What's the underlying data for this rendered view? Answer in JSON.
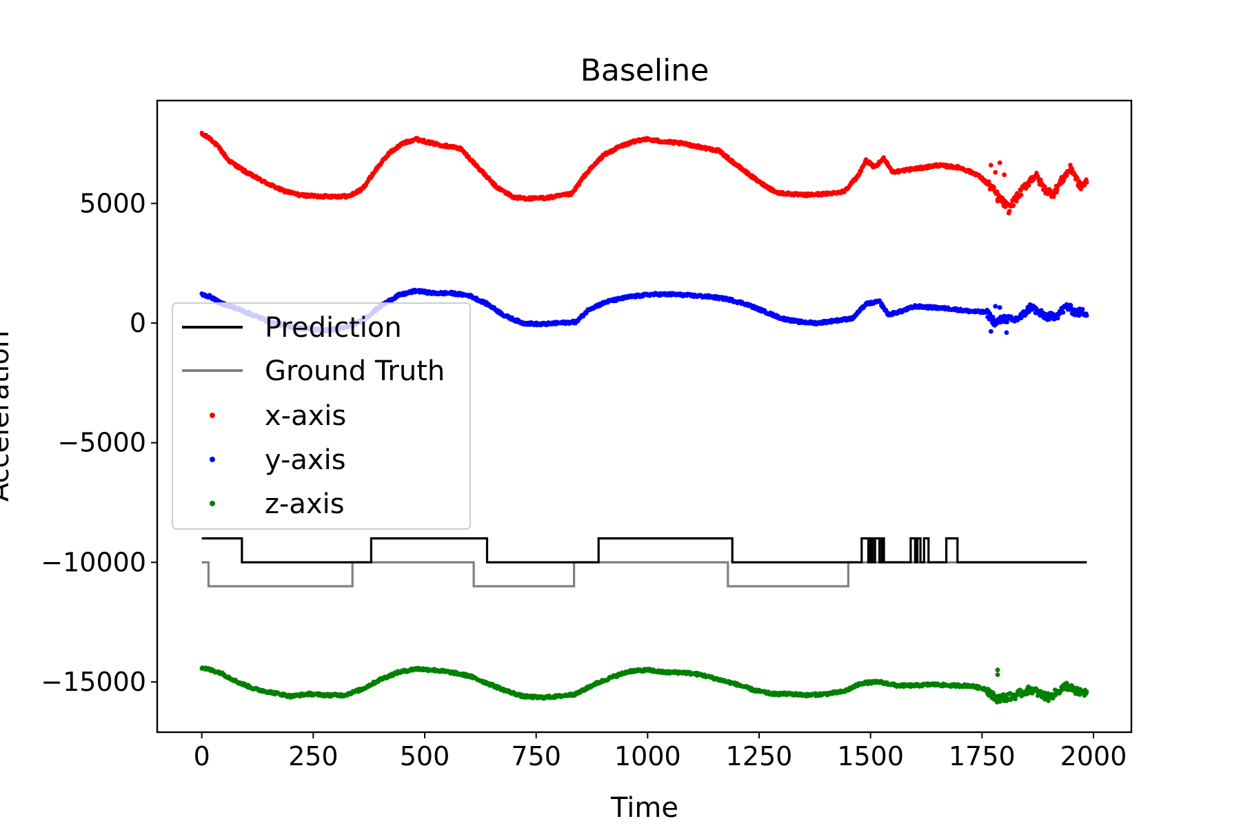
{
  "chart_data": {
    "type": "scatter",
    "title": "Baseline",
    "xlabel": "Time",
    "ylabel": "Acceleration",
    "xlim": [
      -100,
      2085
    ],
    "ylim": [
      -17100,
      9300
    ],
    "xticks": [
      0,
      250,
      500,
      750,
      1000,
      1250,
      1500,
      1750,
      2000
    ],
    "yticks": [
      5000,
      0,
      -5000,
      -10000,
      -15000
    ],
    "ytick_labels": [
      "5000",
      "0",
      "−5000",
      "−10000",
      "−15000"
    ],
    "legend": {
      "position": "center-left",
      "entries": [
        "Prediction",
        "Ground Truth",
        "x-axis",
        "y-axis",
        "z-axis"
      ]
    },
    "scatter_series": [
      {
        "name": "x-axis",
        "color": "#ff0000",
        "x_range": [
          0,
          1985
        ],
        "keypoints": [
          [
            0,
            7900
          ],
          [
            20,
            7700
          ],
          [
            40,
            7300
          ],
          [
            60,
            6800
          ],
          [
            100,
            6300
          ],
          [
            140,
            5900
          ],
          [
            180,
            5550
          ],
          [
            220,
            5350
          ],
          [
            260,
            5300
          ],
          [
            300,
            5300
          ],
          [
            330,
            5300
          ],
          [
            360,
            5600
          ],
          [
            390,
            6400
          ],
          [
            420,
            7100
          ],
          [
            450,
            7500
          ],
          [
            480,
            7700
          ],
          [
            520,
            7500
          ],
          [
            580,
            7300
          ],
          [
            620,
            6500
          ],
          [
            660,
            5700
          ],
          [
            700,
            5250
          ],
          [
            740,
            5200
          ],
          [
            780,
            5250
          ],
          [
            830,
            5400
          ],
          [
            860,
            6200
          ],
          [
            900,
            7000
          ],
          [
            940,
            7400
          ],
          [
            990,
            7700
          ],
          [
            1030,
            7600
          ],
          [
            1080,
            7500
          ],
          [
            1120,
            7350
          ],
          [
            1160,
            7200
          ],
          [
            1200,
            6600
          ],
          [
            1250,
            5900
          ],
          [
            1290,
            5450
          ],
          [
            1350,
            5350
          ],
          [
            1400,
            5400
          ],
          [
            1440,
            5500
          ],
          [
            1470,
            6100
          ],
          [
            1490,
            6800
          ],
          [
            1510,
            6500
          ],
          [
            1530,
            6900
          ],
          [
            1550,
            6300
          ],
          [
            1580,
            6400
          ],
          [
            1620,
            6500
          ],
          [
            1650,
            6600
          ],
          [
            1700,
            6500
          ],
          [
            1740,
            6200
          ],
          [
            1770,
            5700
          ],
          [
            1790,
            5200
          ],
          [
            1810,
            4800
          ],
          [
            1830,
            5300
          ],
          [
            1850,
            5800
          ],
          [
            1870,
            6200
          ],
          [
            1890,
            5600
          ],
          [
            1910,
            5400
          ],
          [
            1930,
            6000
          ],
          [
            1950,
            6500
          ],
          [
            1970,
            5700
          ],
          [
            1985,
            5900
          ]
        ],
        "outliers": [
          [
            1770,
            6600
          ],
          [
            1780,
            6300
          ],
          [
            1790,
            6700
          ],
          [
            1800,
            6200
          ],
          [
            1785,
            5100
          ],
          [
            1810,
            4600
          ]
        ]
      },
      {
        "name": "y-axis",
        "color": "#0000ff",
        "x_range": [
          0,
          1985
        ],
        "keypoints": [
          [
            0,
            1200
          ],
          [
            20,
            1100
          ],
          [
            40,
            850
          ],
          [
            80,
            600
          ],
          [
            120,
            300
          ],
          [
            160,
            0
          ],
          [
            200,
            -150
          ],
          [
            240,
            -250
          ],
          [
            280,
            -300
          ],
          [
            320,
            -200
          ],
          [
            360,
            100
          ],
          [
            400,
            700
          ],
          [
            440,
            1150
          ],
          [
            480,
            1350
          ],
          [
            520,
            1250
          ],
          [
            560,
            1250
          ],
          [
            600,
            1150
          ],
          [
            640,
            800
          ],
          [
            680,
            300
          ],
          [
            720,
            0
          ],
          [
            760,
            -50
          ],
          [
            800,
            0
          ],
          [
            840,
            50
          ],
          [
            870,
            600
          ],
          [
            910,
            900
          ],
          [
            960,
            1100
          ],
          [
            1010,
            1200
          ],
          [
            1060,
            1200
          ],
          [
            1100,
            1150
          ],
          [
            1140,
            1100
          ],
          [
            1180,
            1000
          ],
          [
            1220,
            800
          ],
          [
            1260,
            500
          ],
          [
            1300,
            200
          ],
          [
            1340,
            50
          ],
          [
            1380,
            0
          ],
          [
            1420,
            100
          ],
          [
            1460,
            200
          ],
          [
            1490,
            800
          ],
          [
            1520,
            900
          ],
          [
            1540,
            350
          ],
          [
            1570,
            500
          ],
          [
            1600,
            700
          ],
          [
            1640,
            650
          ],
          [
            1680,
            600
          ],
          [
            1720,
            500
          ],
          [
            1760,
            450
          ],
          [
            1780,
            0
          ],
          [
            1800,
            200
          ],
          [
            1820,
            100
          ],
          [
            1840,
            300
          ],
          [
            1860,
            700
          ],
          [
            1880,
            400
          ],
          [
            1900,
            250
          ],
          [
            1920,
            350
          ],
          [
            1940,
            700
          ],
          [
            1960,
            450
          ],
          [
            1985,
            450
          ]
        ],
        "outliers": [
          [
            1770,
            -350
          ],
          [
            1790,
            650
          ],
          [
            1805,
            -400
          ],
          [
            1780,
            700
          ]
        ]
      },
      {
        "name": "z-axis",
        "color": "#008000",
        "x_range": [
          0,
          1985
        ],
        "keypoints": [
          [
            0,
            -14400
          ],
          [
            40,
            -14600
          ],
          [
            80,
            -15000
          ],
          [
            120,
            -15300
          ],
          [
            160,
            -15450
          ],
          [
            200,
            -15600
          ],
          [
            240,
            -15500
          ],
          [
            280,
            -15550
          ],
          [
            320,
            -15550
          ],
          [
            360,
            -15300
          ],
          [
            400,
            -14900
          ],
          [
            440,
            -14600
          ],
          [
            480,
            -14450
          ],
          [
            520,
            -14500
          ],
          [
            560,
            -14600
          ],
          [
            600,
            -14750
          ],
          [
            640,
            -15050
          ],
          [
            680,
            -15350
          ],
          [
            720,
            -15600
          ],
          [
            760,
            -15650
          ],
          [
            800,
            -15600
          ],
          [
            840,
            -15500
          ],
          [
            880,
            -15100
          ],
          [
            920,
            -14800
          ],
          [
            960,
            -14550
          ],
          [
            1000,
            -14500
          ],
          [
            1040,
            -14600
          ],
          [
            1080,
            -14600
          ],
          [
            1120,
            -14700
          ],
          [
            1160,
            -14900
          ],
          [
            1200,
            -15100
          ],
          [
            1240,
            -15350
          ],
          [
            1280,
            -15500
          ],
          [
            1320,
            -15500
          ],
          [
            1360,
            -15550
          ],
          [
            1400,
            -15500
          ],
          [
            1440,
            -15400
          ],
          [
            1480,
            -15050
          ],
          [
            1520,
            -15000
          ],
          [
            1560,
            -15150
          ],
          [
            1600,
            -15150
          ],
          [
            1640,
            -15100
          ],
          [
            1680,
            -15150
          ],
          [
            1720,
            -15150
          ],
          [
            1760,
            -15300
          ],
          [
            1780,
            -15700
          ],
          [
            1800,
            -15650
          ],
          [
            1820,
            -15600
          ],
          [
            1840,
            -15450
          ],
          [
            1860,
            -15300
          ],
          [
            1880,
            -15500
          ],
          [
            1900,
            -15650
          ],
          [
            1920,
            -15400
          ],
          [
            1940,
            -15150
          ],
          [
            1960,
            -15400
          ],
          [
            1985,
            -15450
          ]
        ],
        "outliers": [
          [
            1785,
            -14500
          ],
          [
            1785,
            -14700
          ]
        ]
      }
    ],
    "step_series": [
      {
        "name": "Prediction",
        "color": "#000000",
        "points": [
          [
            0,
            -9000
          ],
          [
            90,
            -9000
          ],
          [
            90,
            -10000
          ],
          [
            380,
            -10000
          ],
          [
            380,
            -9000
          ],
          [
            640,
            -9000
          ],
          [
            640,
            -10000
          ],
          [
            890,
            -10000
          ],
          [
            890,
            -9000
          ],
          [
            1190,
            -9000
          ],
          [
            1190,
            -10000
          ],
          [
            1480,
            -10000
          ],
          [
            1480,
            -9000
          ],
          [
            1495,
            -9000
          ],
          [
            1495,
            -10000
          ],
          [
            1500,
            -10000
          ],
          [
            1500,
            -9000
          ],
          [
            1505,
            -9000
          ],
          [
            1505,
            -10000
          ],
          [
            1510,
            -10000
          ],
          [
            1510,
            -9000
          ],
          [
            1520,
            -9000
          ],
          [
            1520,
            -10000
          ],
          [
            1525,
            -10000
          ],
          [
            1525,
            -9000
          ],
          [
            1530,
            -9000
          ],
          [
            1530,
            -10000
          ],
          [
            1590,
            -10000
          ],
          [
            1590,
            -9000
          ],
          [
            1600,
            -9000
          ],
          [
            1600,
            -10000
          ],
          [
            1605,
            -10000
          ],
          [
            1605,
            -9000
          ],
          [
            1612,
            -9000
          ],
          [
            1612,
            -10000
          ],
          [
            1620,
            -10000
          ],
          [
            1620,
            -9000
          ],
          [
            1630,
            -9000
          ],
          [
            1630,
            -10000
          ],
          [
            1670,
            -10000
          ],
          [
            1670,
            -9000
          ],
          [
            1695,
            -9000
          ],
          [
            1695,
            -10000
          ],
          [
            1985,
            -10000
          ]
        ]
      },
      {
        "name": "Ground Truth",
        "color": "#808080",
        "points": [
          [
            0,
            -10000
          ],
          [
            15,
            -10000
          ],
          [
            15,
            -11000
          ],
          [
            338,
            -11000
          ],
          [
            338,
            -10000
          ],
          [
            610,
            -10000
          ],
          [
            610,
            -11000
          ],
          [
            835,
            -11000
          ],
          [
            835,
            -10000
          ],
          [
            1180,
            -10000
          ],
          [
            1180,
            -11000
          ],
          [
            1450,
            -11000
          ],
          [
            1450,
            -10000
          ],
          [
            1985,
            -10000
          ]
        ]
      }
    ],
    "grid": false
  }
}
